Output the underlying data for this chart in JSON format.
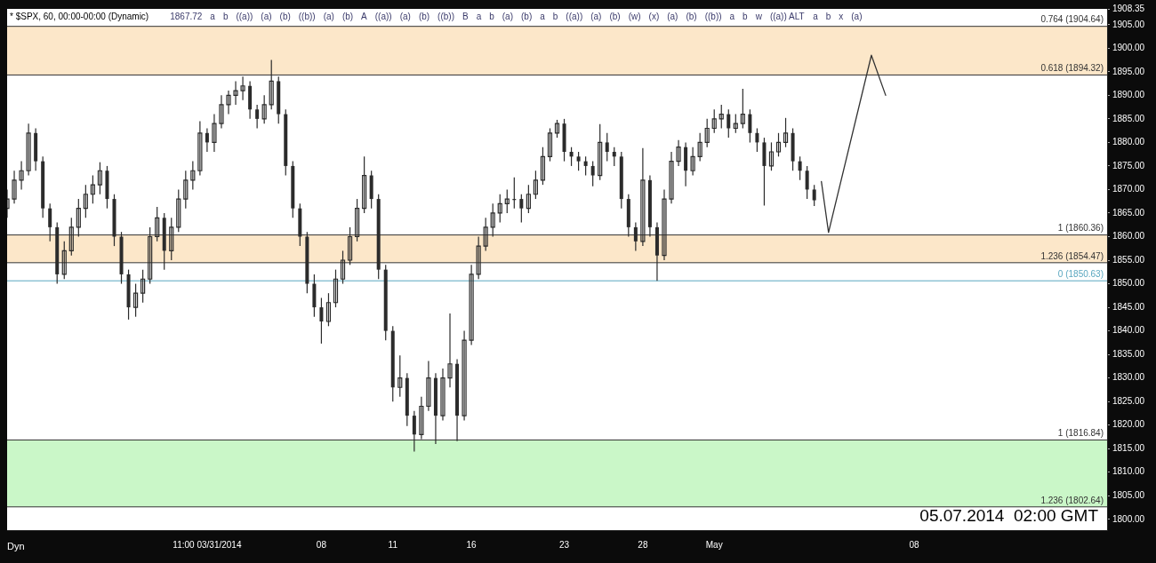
{
  "chart_data": {
    "type": "candlestick",
    "title": "* $SPX, 60, 00:00-00:00 (Dynamic)",
    "color": "#2b2b2b",
    "categories": [
      null,
      null,
      null,
      null,
      null,
      null,
      null,
      null,
      null,
      null,
      null,
      null,
      null,
      null,
      null,
      null,
      null,
      null,
      null,
      null,
      null,
      null,
      null,
      null,
      null,
      null,
      null,
      null,
      "11:00 03/31/2014",
      null,
      null,
      null,
      null,
      null,
      null,
      null,
      null,
      null,
      null,
      null,
      null,
      null,
      null,
      null,
      "08",
      null,
      null,
      null,
      null,
      null,
      null,
      null,
      null,
      null,
      "11",
      null,
      null,
      null,
      null,
      null,
      null,
      null,
      null,
      null,
      null,
      "16",
      null,
      null,
      null,
      null,
      null,
      null,
      null,
      null,
      null,
      null,
      null,
      null,
      "23",
      null,
      null,
      null,
      null,
      null,
      null,
      null,
      null,
      null,
      null,
      "28",
      null,
      null,
      null,
      null,
      null,
      null,
      null,
      null,
      null,
      "May",
      null,
      null,
      null,
      null,
      null,
      null,
      null,
      null,
      null,
      null,
      null,
      null,
      null,
      null,
      null,
      null,
      null,
      null,
      null,
      null,
      null,
      null,
      null,
      null,
      null,
      null,
      null,
      "08",
      null,
      null,
      null,
      null,
      null,
      null,
      null,
      null,
      null,
      null,
      null,
      null,
      null,
      null,
      null,
      null,
      null,
      null,
      null,
      null,
      null,
      null,
      null,
      null,
      null,
      null,
      null
    ],
    "ylim": [
      1797.7,
      1908.35
    ],
    "yticks": [
      {
        "value": 1800,
        "label": "1800.00"
      },
      {
        "value": 1805,
        "label": "1805.00"
      },
      {
        "value": 1810,
        "label": "1810.00"
      },
      {
        "value": 1815,
        "label": "1815.00"
      },
      {
        "value": 1820,
        "label": "1820.00"
      },
      {
        "value": 1825,
        "label": "1825.00"
      },
      {
        "value": 1830,
        "label": "1830.00"
      },
      {
        "value": 1835,
        "label": "1835.00"
      },
      {
        "value": 1840,
        "label": "1840.00"
      },
      {
        "value": 1845,
        "label": "1845.00"
      },
      {
        "value": 1850,
        "label": "1850.00"
      },
      {
        "value": 1855,
        "label": "1855.00"
      },
      {
        "value": 1860,
        "label": "1860.00"
      },
      {
        "value": 1865,
        "label": "1865.00"
      },
      {
        "value": 1870,
        "label": "1870.00"
      },
      {
        "value": 1875,
        "label": "1875.00"
      },
      {
        "value": 1880,
        "label": "1880.00"
      },
      {
        "value": 1885,
        "label": "1885.00"
      },
      {
        "value": 1890,
        "label": "1890.00"
      },
      {
        "value": 1895,
        "label": "1895.00"
      },
      {
        "value": 1900,
        "label": "1900.00"
      },
      {
        "value": 1905,
        "label": "1905.00"
      },
      {
        "value": 1908.35,
        "label": "1908.35"
      }
    ],
    "ohlc": [
      [
        1866,
        1870,
        1864,
        1868
      ],
      [
        1868,
        1874,
        1867,
        1872
      ],
      [
        1872,
        1876,
        1870,
        1874
      ],
      [
        1874,
        1884,
        1873,
        1882
      ],
      [
        1882,
        1883,
        1874,
        1876
      ],
      [
        1876,
        1877,
        1864,
        1866
      ],
      [
        1866,
        1867,
        1859,
        1862
      ],
      [
        1862,
        1863,
        1850,
        1852
      ],
      [
        1852,
        1859,
        1851,
        1857
      ],
      [
        1857,
        1864,
        1856,
        1862
      ],
      [
        1862,
        1868,
        1860,
        1866
      ],
      [
        1866,
        1871,
        1864,
        1869
      ],
      [
        1869,
        1873,
        1867,
        1871
      ],
      [
        1871,
        1875.8,
        1869,
        1874
      ],
      [
        1874,
        1875,
        1866,
        1868
      ],
      [
        1868,
        1869,
        1858,
        1860
      ],
      [
        1860,
        1861,
        1850,
        1852
      ],
      [
        1852,
        1853,
        1842.4,
        1845
      ],
      [
        1845,
        1850,
        1843,
        1848
      ],
      [
        1848,
        1853,
        1846,
        1851
      ],
      [
        1851,
        1862,
        1850,
        1860
      ],
      [
        1860,
        1866.3,
        1859,
        1864
      ],
      [
        1864,
        1865,
        1853,
        1857
      ],
      [
        1857,
        1864,
        1855,
        1862
      ],
      [
        1862,
        1870,
        1861,
        1868
      ],
      [
        1868,
        1874,
        1866,
        1872
      ],
      [
        1872,
        1876,
        1870,
        1874
      ],
      [
        1874,
        1884.5,
        1873,
        1882
      ],
      [
        1882,
        1883,
        1878,
        1880
      ],
      [
        1880,
        1886,
        1878,
        1884
      ],
      [
        1884,
        1890,
        1883,
        1888
      ],
      [
        1888,
        1891,
        1886,
        1890
      ],
      [
        1890,
        1893,
        1888,
        1891
      ],
      [
        1891,
        1894,
        1889,
        1892
      ],
      [
        1892,
        1893,
        1885,
        1887
      ],
      [
        1887,
        1888,
        1883,
        1885
      ],
      [
        1885,
        1890,
        1884,
        1888
      ],
      [
        1888,
        1897.5,
        1887,
        1893
      ],
      [
        1893,
        1894,
        1884,
        1886
      ],
      [
        1886,
        1887,
        1873,
        1875
      ],
      [
        1875,
        1876,
        1864,
        1866
      ],
      [
        1866,
        1867,
        1858,
        1860
      ],
      [
        1860,
        1861,
        1848,
        1850
      ],
      [
        1850,
        1852,
        1843,
        1845
      ],
      [
        1845,
        1847,
        1837.3,
        1842
      ],
      [
        1842,
        1848,
        1841,
        1846
      ],
      [
        1846,
        1853,
        1845,
        1851
      ],
      [
        1851,
        1857,
        1850,
        1855
      ],
      [
        1855,
        1862,
        1854,
        1860
      ],
      [
        1860,
        1868,
        1859,
        1866
      ],
      [
        1866,
        1877,
        1865,
        1873
      ],
      [
        1873,
        1874,
        1866,
        1868
      ],
      [
        1868,
        1869,
        1851,
        1853
      ],
      [
        1853,
        1854,
        1838,
        1840
      ],
      [
        1840,
        1841,
        1825,
        1828
      ],
      [
        1828,
        1834.8,
        1826,
        1830
      ],
      [
        1830,
        1831,
        1819.8,
        1822
      ],
      [
        1822,
        1823,
        1814.4,
        1818
      ],
      [
        1818,
        1826,
        1817,
        1824
      ],
      [
        1824,
        1833.6,
        1823,
        1830
      ],
      [
        1830,
        1831,
        1816,
        1822
      ],
      [
        1822,
        1832,
        1821,
        1830
      ],
      [
        1830,
        1843.7,
        1828,
        1833
      ],
      [
        1833,
        1834,
        1816.6,
        1822
      ],
      [
        1822,
        1840,
        1821,
        1838
      ],
      [
        1838,
        1854,
        1837,
        1852
      ],
      [
        1852,
        1860,
        1851,
        1858
      ],
      [
        1858,
        1864,
        1857,
        1862
      ],
      [
        1862,
        1867,
        1860,
        1865
      ],
      [
        1865,
        1869,
        1863,
        1867
      ],
      [
        1867,
        1870,
        1865,
        1868
      ],
      [
        1868,
        1872.6,
        1866,
        1868
      ],
      [
        1868,
        1869,
        1863,
        1866
      ],
      [
        1866,
        1871,
        1865,
        1869
      ],
      [
        1869,
        1874,
        1868,
        1872
      ],
      [
        1872,
        1879,
        1871,
        1877
      ],
      [
        1877,
        1883,
        1876,
        1882
      ],
      [
        1882,
        1884.8,
        1881,
        1884
      ],
      [
        1884,
        1885,
        1876,
        1878
      ],
      [
        1878,
        1879,
        1875,
        1877
      ],
      [
        1877,
        1878,
        1874,
        1876
      ],
      [
        1876,
        1877,
        1873,
        1875
      ],
      [
        1875,
        1876,
        1870.7,
        1873
      ],
      [
        1873,
        1883.9,
        1872,
        1880
      ],
      [
        1880,
        1882,
        1876,
        1878
      ],
      [
        1878,
        1879,
        1875,
        1877
      ],
      [
        1877,
        1878,
        1866,
        1868
      ],
      [
        1868,
        1869,
        1860,
        1862
      ],
      [
        1862,
        1863,
        1857,
        1859
      ],
      [
        1859,
        1878.8,
        1858,
        1872
      ],
      [
        1872,
        1873,
        1860,
        1862
      ],
      [
        1862,
        1863,
        1850.6,
        1856
      ],
      [
        1856,
        1870,
        1855,
        1868
      ],
      [
        1868,
        1878,
        1867,
        1876
      ],
      [
        1876,
        1880.5,
        1875,
        1879
      ],
      [
        1879,
        1880,
        1870.7,
        1874
      ],
      [
        1874,
        1879,
        1873,
        1877
      ],
      [
        1877,
        1882,
        1876,
        1880
      ],
      [
        1880,
        1885,
        1879,
        1883
      ],
      [
        1883,
        1887,
        1882,
        1885
      ],
      [
        1885,
        1888,
        1883,
        1886
      ],
      [
        1886,
        1887,
        1881,
        1883
      ],
      [
        1883,
        1886,
        1882,
        1884
      ],
      [
        1884,
        1891.4,
        1883,
        1886
      ],
      [
        1886,
        1887,
        1880,
        1882
      ],
      [
        1882,
        1883,
        1878,
        1880
      ],
      [
        1880,
        1881,
        1866.6,
        1875
      ],
      [
        1875,
        1880,
        1874,
        1878
      ],
      [
        1878,
        1882,
        1877,
        1880
      ],
      [
        1880,
        1885.2,
        1879,
        1882
      ],
      [
        1882,
        1883,
        1874,
        1876
      ],
      [
        1876,
        1877,
        1872,
        1874
      ],
      [
        1874,
        1875,
        1868,
        1870
      ],
      [
        1870,
        1871,
        1866.5,
        1867.72
      ],
      null,
      null,
      null,
      null,
      null,
      null,
      null,
      null,
      null,
      null,
      null,
      null,
      null,
      null,
      null,
      null,
      null,
      null,
      null,
      null,
      null,
      null,
      null,
      null,
      null,
      null,
      null,
      null,
      null,
      null,
      null,
      null,
      null,
      null,
      null,
      null,
      null,
      null,
      null,
      null,
      null
    ],
    "series": [
      {
        "type": "line",
        "values": [
          null,
          null,
          null,
          null,
          null,
          null,
          null,
          null,
          null,
          null,
          null,
          null,
          null,
          null,
          null,
          null,
          null,
          null,
          null,
          null,
          null,
          null,
          null,
          null,
          null,
          null,
          null,
          null,
          null,
          null,
          null,
          null,
          null,
          null,
          null,
          null,
          null,
          null,
          null,
          null,
          null,
          null,
          null,
          null,
          null,
          null,
          null,
          null,
          null,
          null,
          null,
          null,
          null,
          null,
          null,
          null,
          null,
          null,
          null,
          null,
          null,
          null,
          null,
          null,
          null,
          null,
          null,
          null,
          null,
          null,
          null,
          null,
          null,
          null,
          null,
          null,
          null,
          null,
          null,
          null,
          null,
          null,
          null,
          null,
          null,
          null,
          null,
          null,
          null,
          null,
          null,
          null,
          null,
          null,
          null,
          null,
          null,
          null,
          null,
          null,
          null,
          null,
          null,
          null,
          null,
          null,
          null,
          null,
          null,
          null,
          null,
          null,
          null,
          null,
          1871.7,
          1860.9,
          null,
          null,
          null,
          null,
          null,
          1898.5,
          null,
          1890,
          null,
          null,
          null,
          null,
          null,
          null,
          null,
          null,
          null,
          null,
          null,
          null,
          null,
          null,
          null,
          null,
          null,
          null,
          null,
          null,
          null,
          null,
          null,
          null,
          null,
          null,
          null,
          null,
          null,
          null,
          null
        ],
        "color": "#333333"
      }
    ],
    "marker": "none",
    "bands": [
      {
        "axis": "y",
        "from": 1894.32,
        "to": 1904.64,
        "color": "#f9d39c"
      },
      {
        "axis": "y",
        "from": 1854.47,
        "to": 1860.36,
        "color": "#f9d39c"
      },
      {
        "axis": "y",
        "from": 1802.64,
        "to": 1816.84,
        "color": "#9ef09a"
      }
    ],
    "ref_lines": [
      {
        "axis": "y",
        "value": 1904.64,
        "label": "0.764 (1904.64)",
        "color": "#333333"
      },
      {
        "axis": "y",
        "value": 1894.32,
        "label": "0.618 (1894.32)",
        "color": "#333333"
      },
      {
        "axis": "y",
        "value": 1860.36,
        "label": "1 (1860.36)",
        "color": "#333333"
      },
      {
        "axis": "y",
        "value": 1854.47,
        "label": "1.236 (1854.47)",
        "color": "#333333"
      },
      {
        "axis": "y",
        "value": 1850.63,
        "label": "0 (1850.63)",
        "color": "#5aa7c0"
      },
      {
        "axis": "y",
        "value": 1816.84,
        "label": "1 (1816.84)",
        "color": "#333333"
      },
      {
        "axis": "y",
        "value": 1802.64,
        "label": "1.236 (1802.64)",
        "color": "#333333"
      }
    ],
    "annotations": [
      "05.07.2014  02:00 GMT",
      "Dyn",
      "1867.72",
      "a",
      "b",
      "((a))",
      "(a)",
      "(b)",
      "((b))",
      "(a)",
      "(b)",
      "A",
      "((a))",
      "(a)",
      "(b)",
      "((b))",
      "B",
      "a",
      "b",
      "(a)",
      "(b)",
      "a",
      "b",
      "((a))",
      "(a)",
      "(b)",
      "(w)",
      "(x)",
      "(a)",
      "(b)",
      "((b))",
      "a",
      "b",
      "w",
      "((a)) ALT",
      "a",
      "b",
      "x",
      "(a)"
    ]
  }
}
